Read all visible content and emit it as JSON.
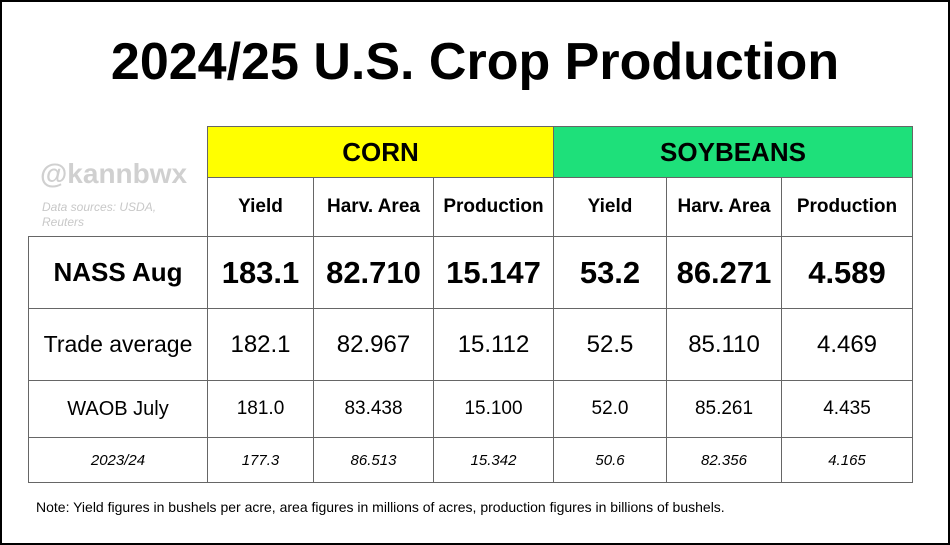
{
  "header": {
    "title": "2024/25 U.S. Crop Production"
  },
  "watermark": {
    "handle": "@kannbwx",
    "sources": "Data sources: USDA, Reuters"
  },
  "table": {
    "groups": [
      {
        "label": "CORN"
      },
      {
        "label": "SOYBEANS"
      }
    ],
    "columns": [
      "Yield",
      "Harv. Area",
      "Production",
      "Yield",
      "Harv. Area",
      "Production"
    ],
    "rows": [
      {
        "label": "NASS Aug",
        "values": [
          "183.1",
          "82.710",
          "15.147",
          "53.2",
          "86.271",
          "4.589"
        ]
      },
      {
        "label": "Trade average",
        "values": [
          "182.1",
          "82.967",
          "15.112",
          "52.5",
          "85.110",
          "4.469"
        ]
      },
      {
        "label": "WAOB July",
        "values": [
          "181.0",
          "83.438",
          "15.100",
          "52.0",
          "85.261",
          "4.435"
        ]
      },
      {
        "label": "2023/24",
        "values": [
          "177.3",
          "86.513",
          "15.342",
          "50.6",
          "82.356",
          "4.165"
        ]
      }
    ]
  },
  "note": "Note: Yield figures in bushels per acre, area figures in millions of acres, production figures in billions of bushels."
}
